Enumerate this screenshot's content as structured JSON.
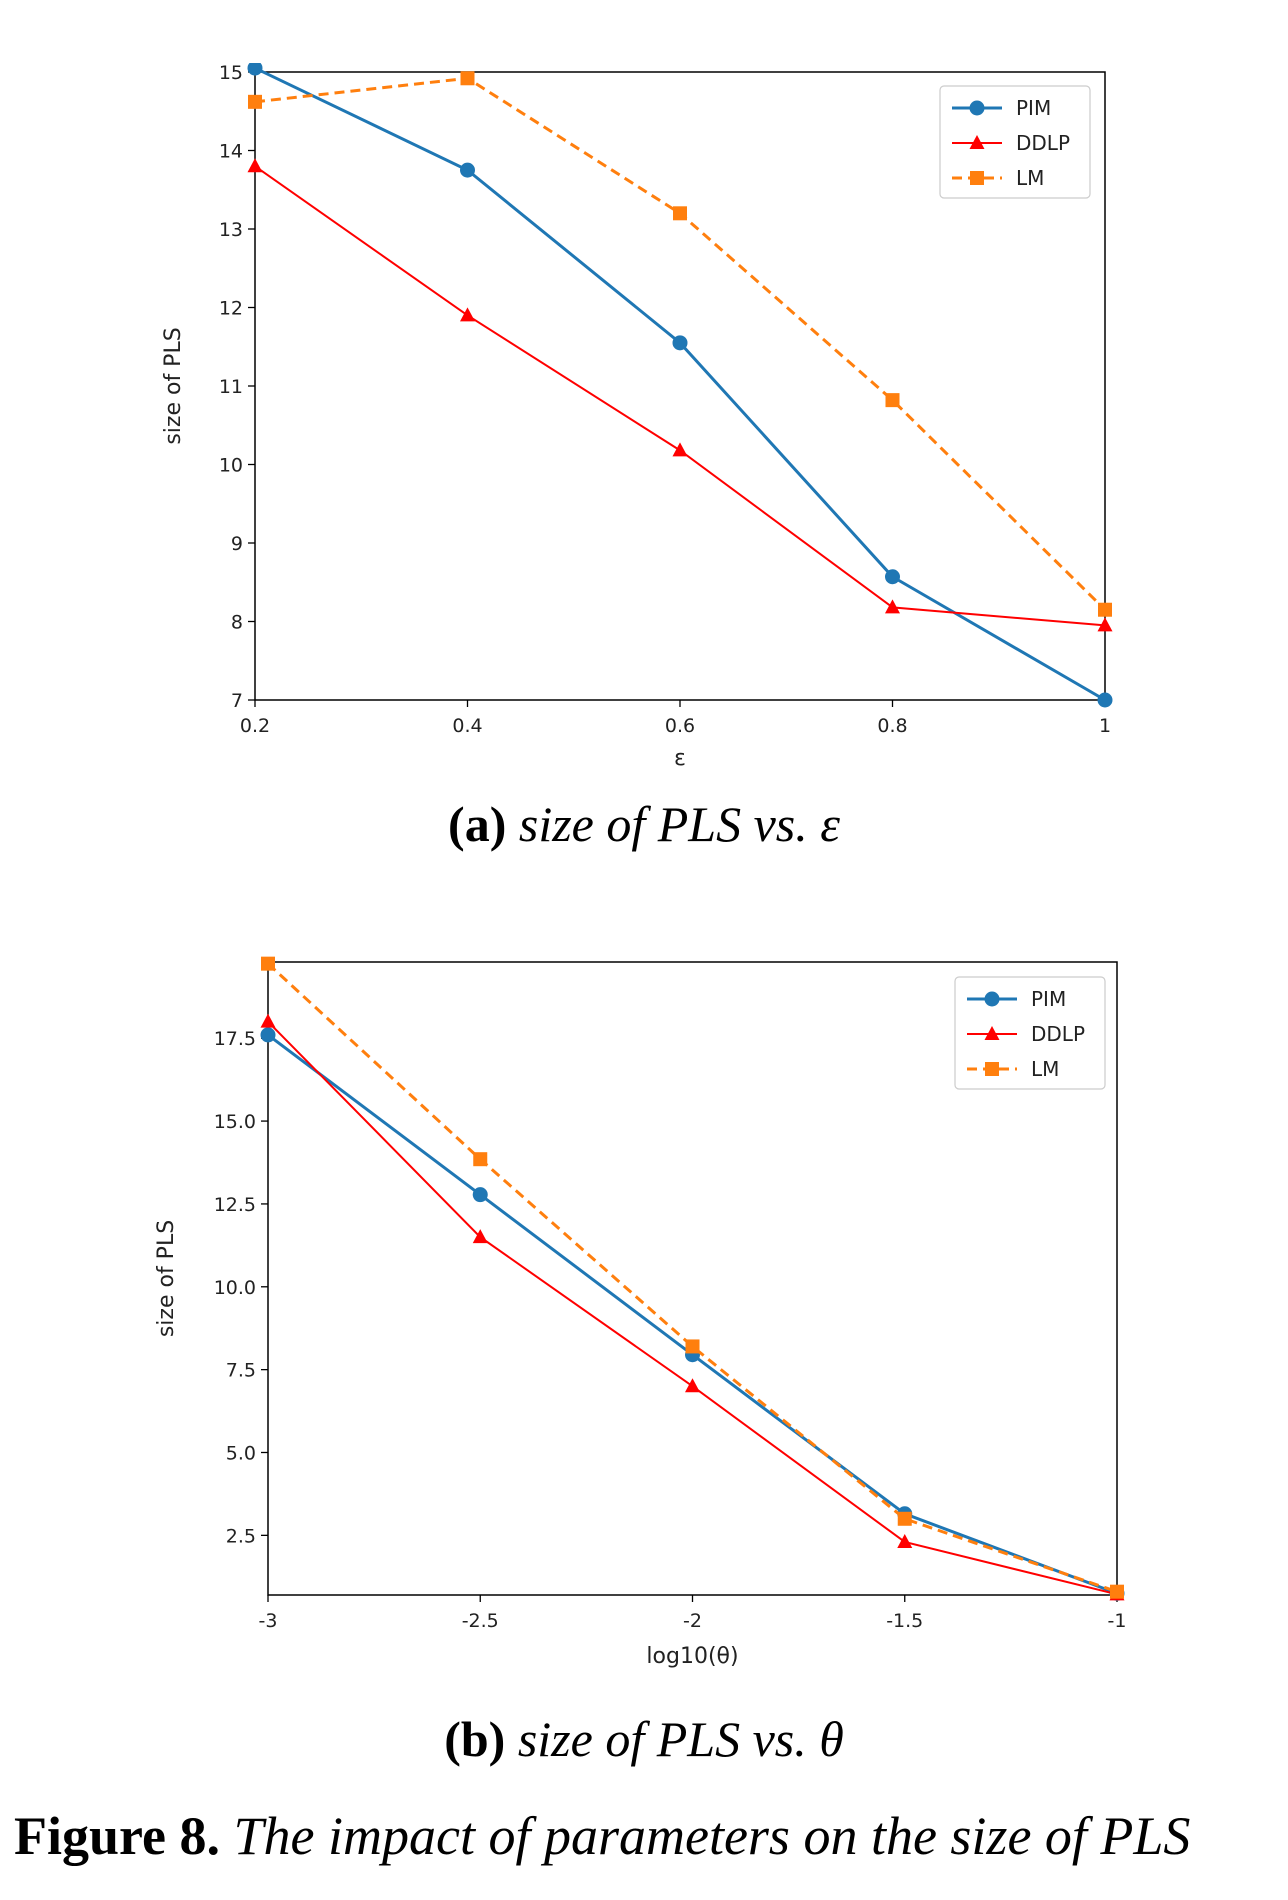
{
  "chart_data": [
    {
      "type": "line",
      "title": "",
      "xlabel": "ε",
      "ylabel": "size  of  PLS",
      "x": [
        0.2,
        0.4,
        0.6,
        0.8,
        1.0
      ],
      "xlim": [
        0.2,
        1.0
      ],
      "ylim": [
        7,
        15
      ],
      "xticks": [
        0.2,
        0.4,
        0.6,
        0.8,
        1.0
      ],
      "xtick_labels": [
        "0.2",
        "0.4",
        "0.6",
        "0.8",
        "1"
      ],
      "yticks": [
        7,
        8,
        9,
        10,
        11,
        12,
        13,
        14,
        15
      ],
      "ytick_labels": [
        "7",
        "8",
        "9",
        "10",
        "11",
        "12",
        "13",
        "14",
        "15"
      ],
      "grid": false,
      "legend": "top-right",
      "series": [
        {
          "name": "PIM",
          "color": "#1f77b4",
          "marker": "circle",
          "linestyle": "solid",
          "values": [
            15.05,
            13.75,
            11.55,
            8.57,
            7.0
          ]
        },
        {
          "name": "DDLP",
          "color": "#ff0000",
          "marker": "triangle",
          "linestyle": "solid",
          "values": [
            13.8,
            11.9,
            10.18,
            8.18,
            7.95
          ]
        },
        {
          "name": "LM",
          "color": "#ff7f0e",
          "marker": "square",
          "linestyle": "dashed",
          "values": [
            14.62,
            14.92,
            13.2,
            10.82,
            8.15
          ]
        }
      ]
    },
    {
      "type": "line",
      "title": "",
      "xlabel": "log10(θ)",
      "ylabel": "size  of  PLS",
      "x": [
        -3,
        -2.5,
        -2,
        -1.5,
        -1
      ],
      "xlim": [
        -3,
        -1
      ],
      "ylim": [
        0.7,
        19.8
      ],
      "xticks": [
        -3,
        -2.5,
        -2,
        -1.5,
        -1
      ],
      "xtick_labels": [
        "-3",
        "-2.5",
        "-2",
        "-1.5",
        "-1"
      ],
      "yticks": [
        2.5,
        5.0,
        7.5,
        10.0,
        12.5,
        15.0,
        17.5
      ],
      "ytick_labels": [
        "2.5",
        "5.0",
        "7.5",
        "10.0",
        "12.5",
        "15.0",
        "17.5"
      ],
      "grid": false,
      "legend": "top-right",
      "series": [
        {
          "name": "PIM",
          "color": "#1f77b4",
          "marker": "circle",
          "linestyle": "solid",
          "values": [
            17.6,
            12.78,
            7.95,
            3.15,
            0.75
          ]
        },
        {
          "name": "DDLP",
          "color": "#ff0000",
          "marker": "triangle",
          "linestyle": "solid",
          "values": [
            18.0,
            11.5,
            7.0,
            2.3,
            0.72
          ]
        },
        {
          "name": "LM",
          "color": "#ff7f0e",
          "marker": "square",
          "linestyle": "dashed",
          "values": [
            19.75,
            13.85,
            8.2,
            3.0,
            0.8
          ]
        }
      ]
    }
  ],
  "captions": {
    "a_label": "(a)",
    "a_text": "size of PLS vs. ε",
    "b_label": "(b)",
    "b_text": "size of PLS vs. θ"
  },
  "figure_caption": {
    "label": "Figure 8.",
    "text": "The impact of parameters on the size of PLS"
  }
}
